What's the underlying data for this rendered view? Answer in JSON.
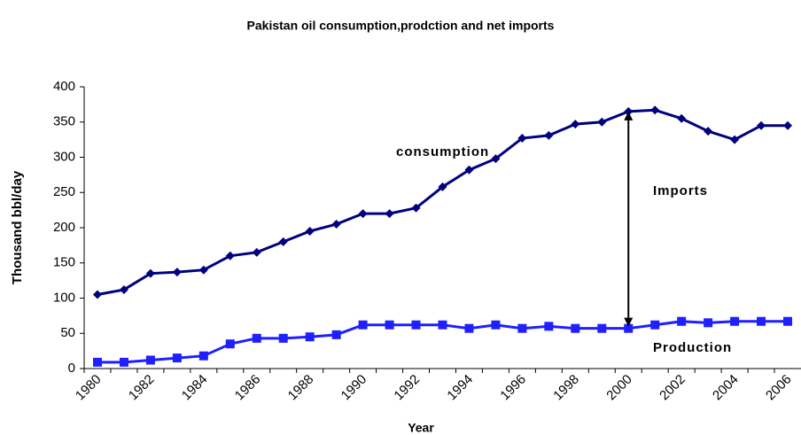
{
  "chart_data": {
    "type": "line",
    "title": "Pakistan oil consumption,prodction and net imports",
    "x_label": "Year",
    "y_label": "Thousand  bbl/day",
    "annotations": [
      "Imports"
    ],
    "categories": [
      "1980",
      null,
      "1982",
      null,
      "1984",
      null,
      "1986",
      null,
      "1988",
      null,
      "1990",
      null,
      "1992",
      null,
      "1994",
      null,
      "1996",
      null,
      "1998",
      null,
      "2000",
      null,
      "2002",
      null,
      "2004",
      null,
      "2006"
    ],
    "series": [
      {
        "name": "consumption",
        "color": "#000080",
        "marker": "diamond",
        "values": [
          105,
          112,
          135,
          137,
          140,
          160,
          165,
          180,
          195,
          205,
          220,
          220,
          228,
          258,
          282,
          298,
          327,
          331,
          347,
          350,
          365,
          367,
          355,
          337,
          325,
          345,
          345
        ]
      },
      {
        "name": "Production",
        "color": "#1f1fff",
        "marker": "square",
        "values": [
          9,
          9,
          12,
          15,
          18,
          35,
          43,
          43,
          45,
          48,
          62,
          62,
          62,
          62,
          57,
          62,
          57,
          60,
          57,
          57,
          57,
          62,
          67,
          65,
          67,
          67,
          67
        ]
      }
    ],
    "ylim": [
      0,
      400
    ],
    "yticks": [
      0,
      50,
      100,
      150,
      200,
      250,
      300,
      350,
      400
    ],
    "grid": false
  }
}
